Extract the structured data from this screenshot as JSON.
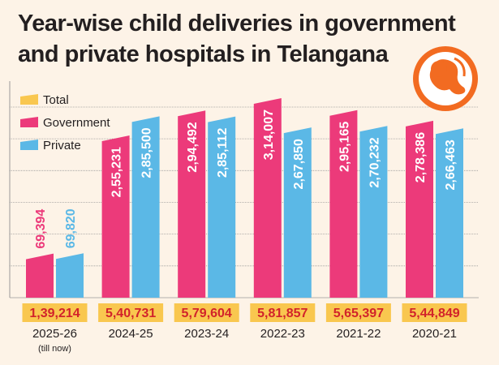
{
  "title_line1": "Year-wise child deliveries in government",
  "title_line2": "and private hospitals in Telangana",
  "icon": "baby-fetus-icon",
  "colors": {
    "total": "#f9c74f",
    "government": "#ec3a7a",
    "private": "#5bb8e6",
    "total_text": "#d2232a",
    "icon_ring": "#f26b21",
    "background": "#fdf3e7",
    "grid": "#9a9a9a"
  },
  "chart_data": {
    "type": "bar",
    "title": "Year-wise child deliveries in government and private hospitals in Telangana",
    "legend": [
      "Total",
      "Government",
      "Private"
    ],
    "legend_position": "top-left",
    "categories": [
      "2025-26",
      "2024-25",
      "2023-24",
      "2022-23",
      "2021-22",
      "2020-21"
    ],
    "category_notes": [
      "(till now)",
      "",
      "",
      "",
      "",
      ""
    ],
    "grid": true,
    "ylim": [
      0,
      340000
    ],
    "series": [
      {
        "name": "Government",
        "values": [
          69394,
          255231,
          294492,
          314007,
          295165,
          278386
        ],
        "labels": [
          "69,394",
          "2,55,231",
          "2,94,492",
          "3,14,007",
          "2,95,165",
          "2,78,386"
        ]
      },
      {
        "name": "Private",
        "values": [
          69820,
          285500,
          285112,
          267850,
          270232,
          266463
        ],
        "labels": [
          "69,820",
          "2,85,500",
          "2,85,112",
          "2,67,850",
          "2,70,232",
          "2,66,463"
        ]
      }
    ],
    "totals": {
      "name": "Total",
      "values": [
        139214,
        540731,
        579604,
        581857,
        565397,
        544849
      ],
      "labels": [
        "1,39,214",
        "5,40,731",
        "5,79,604",
        "5,81,857",
        "5,65,397",
        "5,44,849"
      ]
    }
  }
}
